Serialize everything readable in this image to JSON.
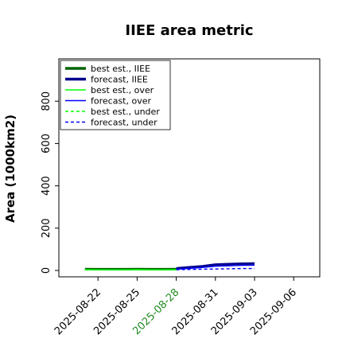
{
  "chart_data": {
    "type": "line",
    "title": "IIEE area metric",
    "xlabel": "",
    "ylabel": "Area (1000km2)",
    "xlim": [
      "2025-08-19",
      "2025-09-08"
    ],
    "ylim": [
      -30,
      1000
    ],
    "x_ticks": [
      "2025-08-22",
      "2025-08-25",
      "2025-08-28",
      "2025-08-31",
      "2025-09-03",
      "2025-09-06"
    ],
    "highlighted_x_tick": "2025-08-28",
    "y_ticks": [
      0,
      200,
      400,
      600,
      800
    ],
    "grid": false,
    "legend_position": "top-left",
    "series": [
      {
        "name": "best est., IIEE",
        "color": "#006400",
        "style": "solid",
        "weight": "thick",
        "x": [
          "2025-08-21",
          "2025-08-22",
          "2025-08-23",
          "2025-08-24",
          "2025-08-25",
          "2025-08-26",
          "2025-08-27",
          "2025-08-28"
        ],
        "values": [
          7,
          6,
          6,
          6,
          7,
          6,
          6,
          7
        ]
      },
      {
        "name": "forecast, IIEE",
        "color": "#00008b",
        "style": "solid",
        "weight": "thick",
        "x": [
          "2025-08-28",
          "2025-08-29",
          "2025-08-30",
          "2025-08-31",
          "2025-09-01",
          "2025-09-02",
          "2025-09-03"
        ],
        "values": [
          10,
          15,
          20,
          28,
          30,
          32,
          33
        ]
      },
      {
        "name": "best est., over",
        "color": "#00ff00",
        "style": "solid",
        "weight": "thin",
        "x": [
          "2025-08-21",
          "2025-08-22",
          "2025-08-23",
          "2025-08-24",
          "2025-08-25",
          "2025-08-26",
          "2025-08-27",
          "2025-08-28"
        ],
        "values": [
          4,
          3,
          3,
          3,
          4,
          3,
          3,
          4
        ]
      },
      {
        "name": "forecast, over",
        "color": "#0000ff",
        "style": "solid",
        "weight": "thin",
        "x": [
          "2025-08-28",
          "2025-08-29",
          "2025-08-30",
          "2025-08-31",
          "2025-09-01",
          "2025-09-02",
          "2025-09-03"
        ],
        "values": [
          6,
          10,
          14,
          20,
          22,
          24,
          25
        ]
      },
      {
        "name": "best est., under",
        "color": "#00ff00",
        "style": "dashed",
        "weight": "thin",
        "x": [
          "2025-08-21",
          "2025-08-22",
          "2025-08-23",
          "2025-08-24",
          "2025-08-25",
          "2025-08-26",
          "2025-08-27",
          "2025-08-28"
        ],
        "values": [
          3,
          3,
          3,
          3,
          3,
          3,
          3,
          3
        ]
      },
      {
        "name": "forecast, under",
        "color": "#0000ff",
        "style": "dashed",
        "weight": "thin",
        "x": [
          "2025-08-28",
          "2025-08-29",
          "2025-08-30",
          "2025-08-31",
          "2025-09-01",
          "2025-09-02",
          "2025-09-03"
        ],
        "values": [
          4,
          5,
          6,
          7,
          8,
          9,
          9
        ]
      }
    ]
  }
}
